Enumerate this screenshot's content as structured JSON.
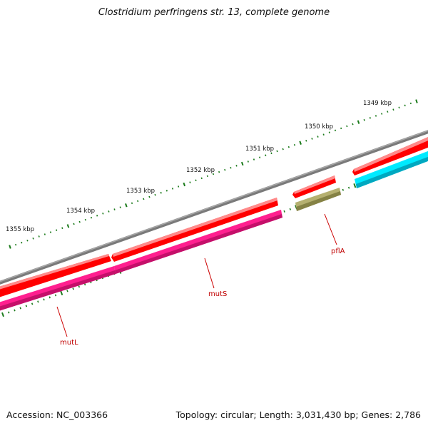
{
  "title": "Clostridium perfringens str. 13, complete genome",
  "footer": {
    "accession": "Accession: NC_003366",
    "summary": "Topology: circular; Length: 3,031,430 bp; Genes: 2,786"
  },
  "scale": {
    "labels": [
      "1349 kbp",
      "1350 kbp",
      "1351 kbp",
      "1352 kbp",
      "1353 kbp",
      "1354 kbp",
      "1355 kbp"
    ]
  },
  "genes": [
    {
      "name": "mutL",
      "labeled": true
    },
    {
      "name": "mutS",
      "labeled": true
    },
    {
      "name": "pflA",
      "labeled": true
    }
  ],
  "colors": {
    "backbone": "#7a7a7a",
    "cds": "#ff0000",
    "mutL_mutS_feature": "#ff1f8f",
    "pflA_feature": "#b5b070",
    "right_feature": "#00eaff",
    "tick": "#1a7a1a",
    "label_line": "#cc0000"
  }
}
